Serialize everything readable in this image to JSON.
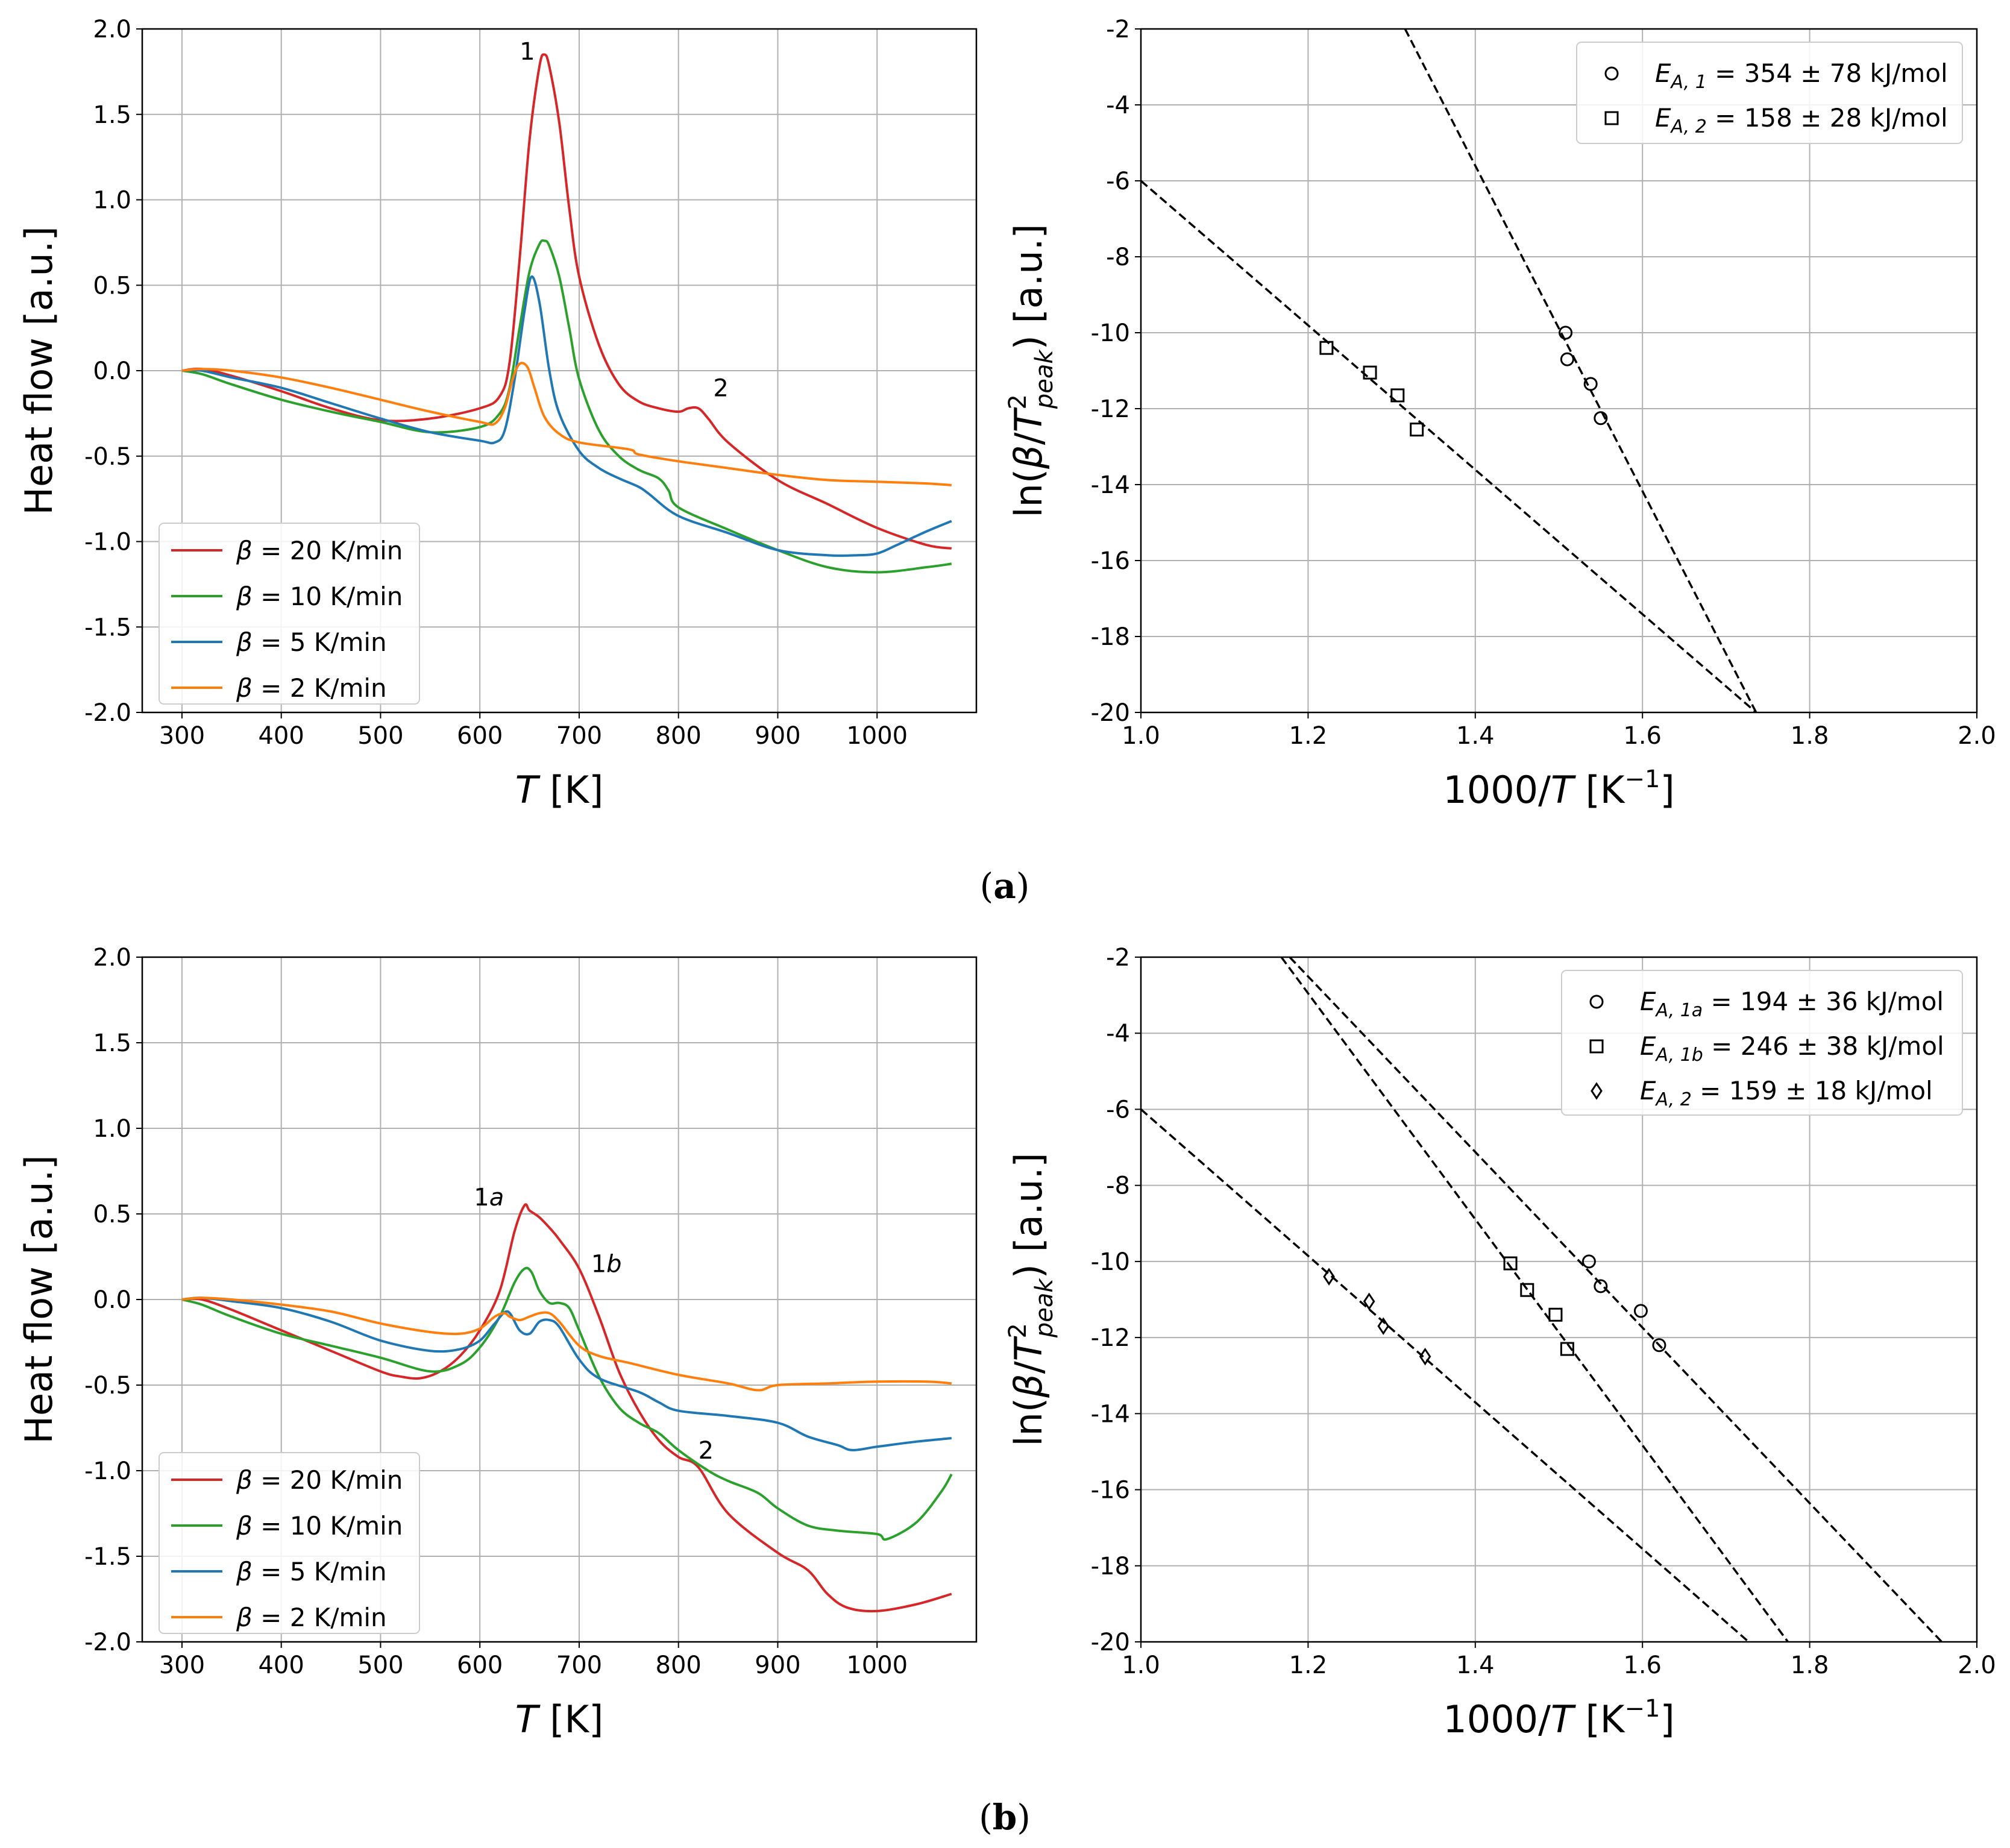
{
  "figure": {
    "caption_a": "a",
    "caption_b": "b"
  },
  "chart_data": [
    {
      "id": "a-left",
      "type": "line",
      "xlabel": "T [K]",
      "ylabel": "Heat flow [a.u.]",
      "xlim": [
        260,
        1100
      ],
      "ylim": [
        -2.0,
        2.0
      ],
      "xticks": [
        300,
        400,
        500,
        600,
        700,
        800,
        900,
        1000
      ],
      "yticks": [
        -2.0,
        -1.5,
        -1.0,
        -0.5,
        0.0,
        0.5,
        1.0,
        1.5,
        2.0
      ],
      "grid": true,
      "legend": "lower-left",
      "series": [
        {
          "name": "β = 20 K/min",
          "color": "#d62728",
          "x": [
            300,
            320,
            350,
            400,
            450,
            500,
            550,
            600,
            620,
            630,
            640,
            650,
            660,
            665,
            670,
            680,
            690,
            700,
            720,
            740,
            760,
            780,
            800,
            810,
            820,
            830,
            850,
            900,
            950,
            1000,
            1050,
            1075
          ],
          "y": [
            0.0,
            0.01,
            -0.03,
            -0.12,
            -0.22,
            -0.29,
            -0.28,
            -0.22,
            -0.15,
            0.05,
            0.65,
            1.35,
            1.78,
            1.85,
            1.78,
            1.45,
            0.95,
            0.55,
            0.15,
            -0.08,
            -0.18,
            -0.22,
            -0.24,
            -0.22,
            -0.22,
            -0.28,
            -0.42,
            -0.64,
            -0.78,
            -0.92,
            -1.02,
            -1.04
          ]
        },
        {
          "name": "β = 10 K/min",
          "color": "#2ca02c",
          "x": [
            300,
            320,
            350,
            400,
            450,
            500,
            550,
            600,
            620,
            630,
            640,
            650,
            660,
            665,
            670,
            680,
            690,
            700,
            720,
            740,
            760,
            780,
            790,
            800,
            850,
            900,
            950,
            1000,
            1050,
            1075
          ],
          "y": [
            0.0,
            -0.02,
            -0.08,
            -0.17,
            -0.24,
            -0.3,
            -0.36,
            -0.33,
            -0.25,
            -0.1,
            0.25,
            0.58,
            0.74,
            0.76,
            0.73,
            0.55,
            0.25,
            -0.05,
            -0.35,
            -0.5,
            -0.58,
            -0.63,
            -0.7,
            -0.8,
            -0.93,
            -1.05,
            -1.15,
            -1.18,
            -1.15,
            -1.13
          ]
        },
        {
          "name": "β = 5 K/min",
          "color": "#1f77b4",
          "x": [
            300,
            320,
            350,
            400,
            450,
            500,
            550,
            600,
            615,
            625,
            635,
            645,
            652,
            660,
            670,
            680,
            700,
            720,
            740,
            760,
            770,
            800,
            850,
            900,
            950,
            980,
            1000,
            1020,
            1050,
            1075
          ],
          "y": [
            0.0,
            0.0,
            -0.04,
            -0.1,
            -0.19,
            -0.28,
            -0.36,
            -0.41,
            -0.42,
            -0.35,
            -0.05,
            0.35,
            0.55,
            0.4,
            0.0,
            -0.25,
            -0.47,
            -0.57,
            -0.63,
            -0.68,
            -0.72,
            -0.85,
            -0.95,
            -1.05,
            -1.08,
            -1.08,
            -1.07,
            -1.02,
            -0.94,
            -0.88
          ]
        },
        {
          "name": "β = 2 K/min",
          "color": "#ff7f0e",
          "x": [
            300,
            320,
            350,
            400,
            450,
            500,
            550,
            600,
            615,
            625,
            633,
            640,
            648,
            655,
            665,
            680,
            700,
            750,
            760,
            800,
            850,
            900,
            950,
            1000,
            1050,
            1075
          ],
          "y": [
            0.0,
            0.01,
            0.0,
            -0.04,
            -0.1,
            -0.17,
            -0.24,
            -0.3,
            -0.31,
            -0.22,
            -0.05,
            0.04,
            0.02,
            -0.1,
            -0.27,
            -0.37,
            -0.42,
            -0.46,
            -0.49,
            -0.53,
            -0.57,
            -0.61,
            -0.64,
            -0.65,
            -0.66,
            -0.67
          ]
        }
      ],
      "annotations": [
        {
          "text": "1",
          "x": 640,
          "y": 1.82
        },
        {
          "text": "2",
          "x": 835,
          "y": -0.15
        }
      ]
    },
    {
      "id": "a-right",
      "type": "scatter",
      "xlabel": "1000/T [K⁻¹]",
      "ylabel": "ln(β/T²peak) [a.u.]",
      "xlim": [
        1.0,
        2.0
      ],
      "ylim": [
        -20,
        -2
      ],
      "xticks": [
        1.0,
        1.2,
        1.4,
        1.6,
        1.8,
        2.0
      ],
      "yticks": [
        -2,
        -4,
        -6,
        -8,
        -10,
        -12,
        -14,
        -16,
        -18,
        -20
      ],
      "grid": true,
      "legend": "top-right",
      "series": [
        {
          "name": "E_A,1 = 354 ± 78 kJ/mol",
          "legend_main": "E",
          "legend_sub": "A, 1",
          "legend_rest": " = 354 ± 78 kJ/mol",
          "marker": "circle",
          "x": [
            1.508,
            1.51,
            1.538,
            1.55
          ],
          "y": [
            -10.0,
            -10.7,
            -11.35,
            -12.25
          ],
          "fit": {
            "x": [
              1.316,
              1.736
            ],
            "y": [
              -2.0,
              -20.0
            ]
          }
        },
        {
          "name": "E_A,2 = 158 ± 28 kJ/mol",
          "legend_main": "E",
          "legend_sub": "A, 2",
          "legend_rest": " = 158 ± 28 kJ/mol",
          "marker": "square",
          "x": [
            1.222,
            1.274,
            1.307,
            1.33
          ],
          "y": [
            -10.4,
            -11.05,
            -11.65,
            -12.55
          ],
          "fit": {
            "x": [
              1.0,
              1.736
            ],
            "y": [
              -6.0,
              -20.0
            ]
          }
        }
      ]
    },
    {
      "id": "b-left",
      "type": "line",
      "xlabel": "T [K]",
      "ylabel": "Heat flow [a.u.]",
      "xlim": [
        260,
        1100
      ],
      "ylim": [
        -2.0,
        2.0
      ],
      "xticks": [
        300,
        400,
        500,
        600,
        700,
        800,
        900,
        1000
      ],
      "yticks": [
        -2.0,
        -1.5,
        -1.0,
        -0.5,
        0.0,
        0.5,
        1.0,
        1.5,
        2.0
      ],
      "grid": true,
      "legend": "lower-left",
      "series": [
        {
          "name": "β = 20 K/min",
          "color": "#d62728",
          "x": [
            300,
            320,
            350,
            400,
            450,
            500,
            520,
            540,
            560,
            580,
            600,
            620,
            635,
            645,
            650,
            660,
            670,
            680,
            700,
            720,
            740,
            760,
            780,
            800,
            820,
            850,
            900,
            930,
            950,
            970,
            1000,
            1040,
            1075
          ],
          "y": [
            0.0,
            0.0,
            -0.06,
            -0.18,
            -0.3,
            -0.42,
            -0.45,
            -0.46,
            -0.42,
            -0.33,
            -0.18,
            0.05,
            0.4,
            0.55,
            0.52,
            0.48,
            0.42,
            0.35,
            0.18,
            -0.1,
            -0.42,
            -0.65,
            -0.82,
            -0.92,
            -0.98,
            -1.25,
            -1.48,
            -1.58,
            -1.72,
            -1.8,
            -1.82,
            -1.78,
            -1.72
          ]
        },
        {
          "name": "β = 10 K/min",
          "color": "#2ca02c",
          "x": [
            300,
            320,
            350,
            400,
            450,
            500,
            550,
            580,
            600,
            620,
            635,
            645,
            652,
            660,
            670,
            680,
            690,
            700,
            720,
            740,
            760,
            780,
            800,
            830,
            850,
            880,
            900,
            930,
            960,
            1000,
            1010,
            1040,
            1065,
            1075
          ],
          "y": [
            0.0,
            -0.03,
            -0.1,
            -0.2,
            -0.27,
            -0.34,
            -0.42,
            -0.38,
            -0.28,
            -0.1,
            0.1,
            0.18,
            0.16,
            0.05,
            -0.02,
            -0.02,
            -0.05,
            -0.18,
            -0.45,
            -0.63,
            -0.72,
            -0.78,
            -0.88,
            -1.0,
            -1.06,
            -1.13,
            -1.22,
            -1.32,
            -1.35,
            -1.37,
            -1.4,
            -1.3,
            -1.12,
            -1.02
          ]
        },
        {
          "name": "β = 5 K/min",
          "color": "#1f77b4",
          "x": [
            300,
            320,
            350,
            400,
            450,
            500,
            550,
            580,
            600,
            615,
            628,
            640,
            650,
            660,
            670,
            680,
            700,
            720,
            760,
            780,
            800,
            850,
            900,
            930,
            960,
            975,
            1000,
            1040,
            1075
          ],
          "y": [
            0.0,
            0.01,
            -0.01,
            -0.05,
            -0.13,
            -0.24,
            -0.3,
            -0.29,
            -0.24,
            -0.14,
            -0.07,
            -0.18,
            -0.2,
            -0.13,
            -0.12,
            -0.16,
            -0.35,
            -0.46,
            -0.54,
            -0.6,
            -0.65,
            -0.68,
            -0.72,
            -0.8,
            -0.85,
            -0.88,
            -0.86,
            -0.83,
            -0.81
          ]
        },
        {
          "name": "β = 2 K/min",
          "color": "#ff7f0e",
          "x": [
            300,
            320,
            350,
            400,
            450,
            500,
            550,
            580,
            600,
            615,
            625,
            630,
            640,
            650,
            660,
            670,
            680,
            700,
            720,
            750,
            800,
            850,
            880,
            900,
            950,
            1000,
            1050,
            1075
          ],
          "y": [
            0.0,
            0.01,
            0.0,
            -0.03,
            -0.07,
            -0.14,
            -0.19,
            -0.2,
            -0.17,
            -0.1,
            -0.08,
            -0.1,
            -0.12,
            -0.1,
            -0.08,
            -0.08,
            -0.13,
            -0.27,
            -0.33,
            -0.37,
            -0.44,
            -0.49,
            -0.53,
            -0.5,
            -0.49,
            -0.48,
            -0.48,
            -0.49
          ]
        }
      ],
      "annotations": [
        {
          "text": "1",
          "italic": "a",
          "x": 594,
          "y": 0.55
        },
        {
          "text": "1",
          "italic": "b",
          "x": 712,
          "y": 0.16
        },
        {
          "text": "2",
          "x": 820,
          "y": -0.93
        }
      ]
    },
    {
      "id": "b-right",
      "type": "scatter",
      "xlabel": "1000/T [K⁻¹]",
      "ylabel": "ln(β/T²peak) [a.u.]",
      "xlim": [
        1.0,
        2.0
      ],
      "ylim": [
        -20,
        -2
      ],
      "xticks": [
        1.0,
        1.2,
        1.4,
        1.6,
        1.8,
        2.0
      ],
      "yticks": [
        -2,
        -4,
        -6,
        -8,
        -10,
        -12,
        -14,
        -16,
        -18,
        -20
      ],
      "grid": true,
      "legend": "top-right",
      "series": [
        {
          "name": "E_A,1a = 194 ± 36 kJ/mol",
          "legend_main": "E",
          "legend_sub": "A, 1a",
          "legend_rest": " = 194 ± 36 kJ/mol",
          "marker": "circle",
          "x": [
            1.536,
            1.55,
            1.598,
            1.62
          ],
          "y": [
            -10.0,
            -10.65,
            -11.3,
            -12.2
          ],
          "fit": {
            "x": [
              1.178,
              1.958
            ],
            "y": [
              -2.0,
              -20.0
            ]
          }
        },
        {
          "name": "E_A,1b = 246 ± 38 kJ/mol",
          "legend_main": "E",
          "legend_sub": "A, 1b",
          "legend_rest": " = 246 ± 38 kJ/mol",
          "marker": "square",
          "x": [
            1.442,
            1.462,
            1.496,
            1.51
          ],
          "y": [
            -10.05,
            -10.75,
            -11.4,
            -12.3
          ],
          "fit": {
            "x": [
              1.168,
              1.774
            ],
            "y": [
              -2.0,
              -20.0
            ]
          }
        },
        {
          "name": "E_A,2 = 159 ± 18 kJ/mol",
          "legend_main": "E",
          "legend_sub": "A, 2",
          "legend_rest": " = 159 ± 18 kJ/mol",
          "marker": "diamond",
          "x": [
            1.225,
            1.273,
            1.29,
            1.34
          ],
          "y": [
            -10.4,
            -11.05,
            -11.7,
            -12.5
          ],
          "fit": {
            "x": [
              1.0,
              1.727
            ],
            "y": [
              -6.0,
              -20.0
            ]
          }
        }
      ]
    }
  ]
}
